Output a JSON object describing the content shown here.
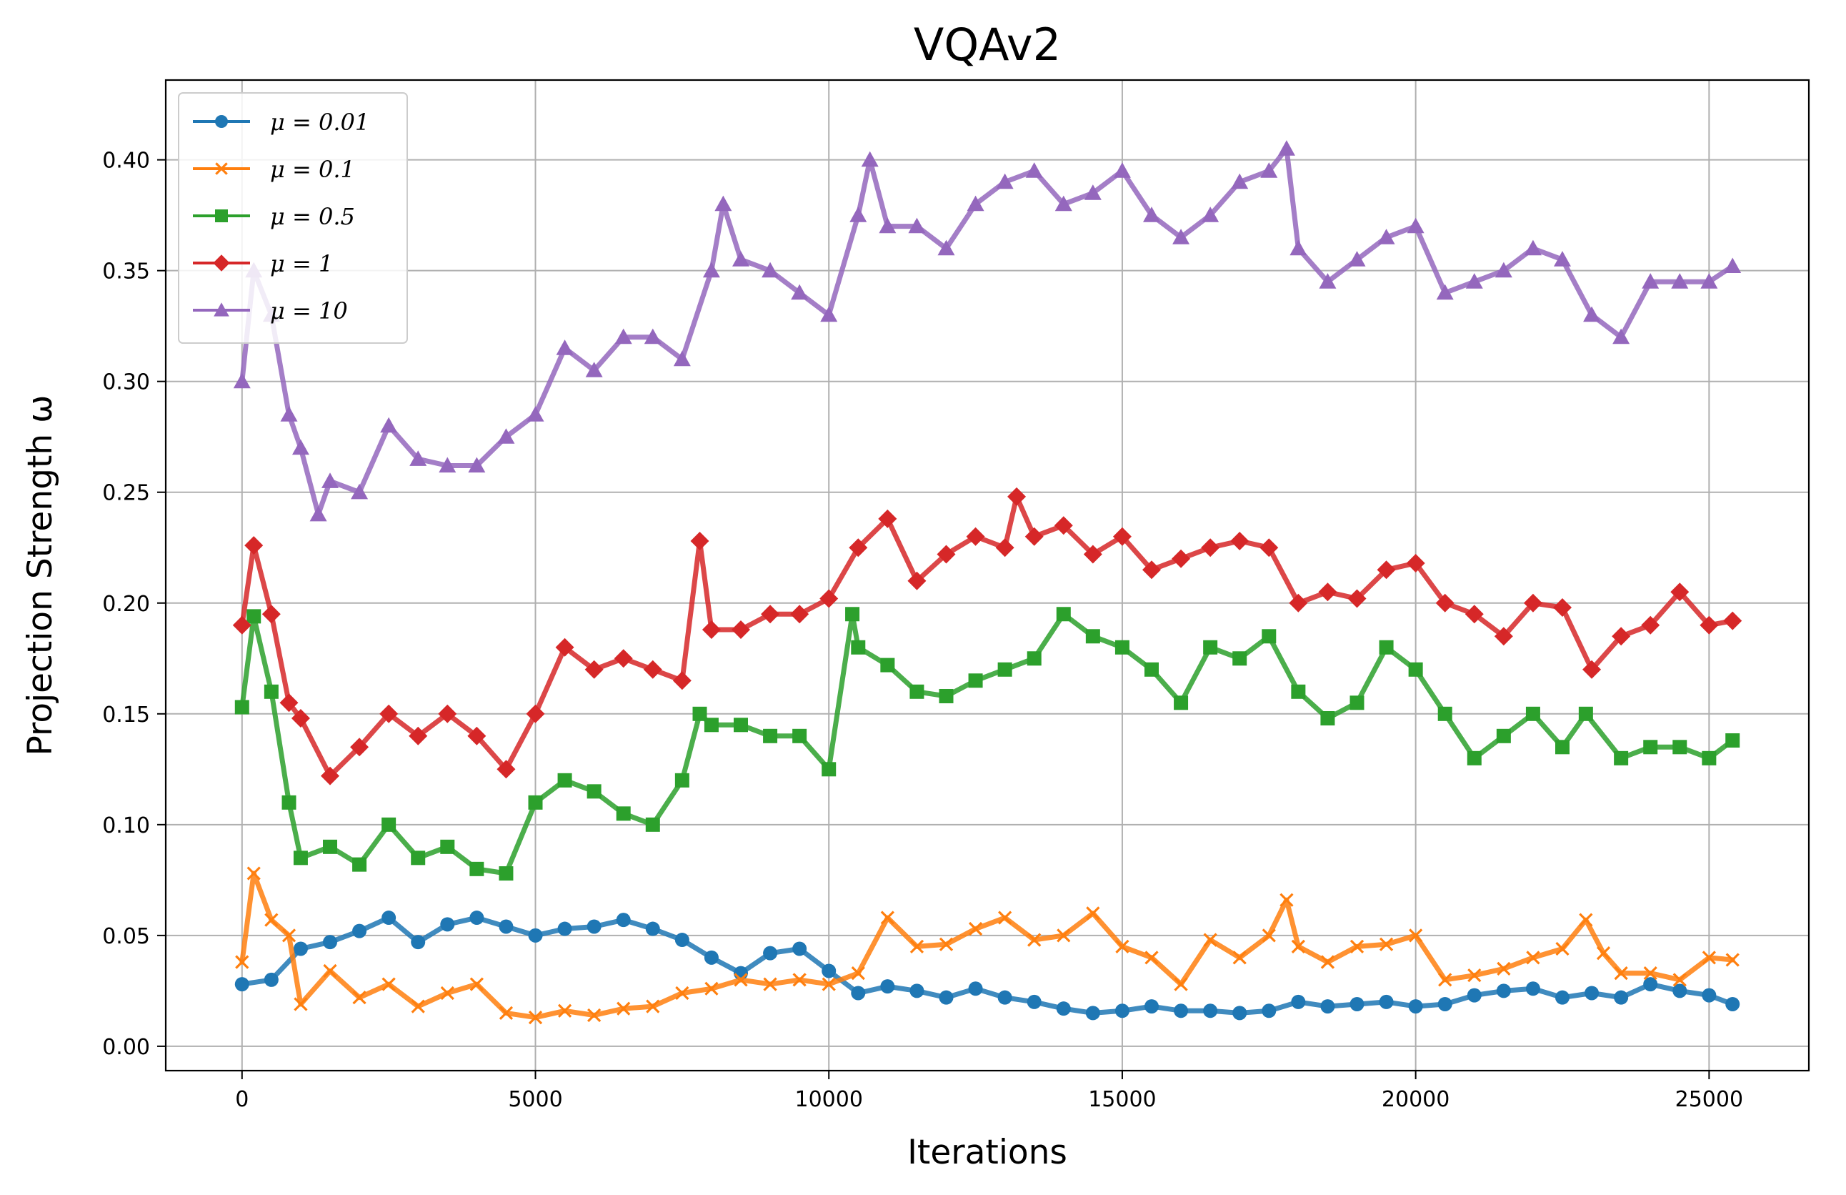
{
  "chart_data": {
    "type": "line",
    "title": "VQAv2",
    "xlabel": "Iterations",
    "ylabel": "Projection Strength ω",
    "xlim": [
      -1300,
      26700
    ],
    "ylim": [
      -0.011,
      0.436
    ],
    "x_ticks": [
      0,
      5000,
      10000,
      15000,
      20000,
      25000
    ],
    "x_tick_labels": [
      "0",
      "5000",
      "10000",
      "15000",
      "20000",
      "25000"
    ],
    "y_ticks": [
      0.0,
      0.05,
      0.1,
      0.15,
      0.2,
      0.25,
      0.3,
      0.35,
      0.4
    ],
    "y_tick_labels": [
      "0.00",
      "0.05",
      "0.10",
      "0.15",
      "0.20",
      "0.25",
      "0.30",
      "0.35",
      "0.40"
    ],
    "grid": true,
    "legend_position": "upper-left",
    "series": [
      {
        "name": "μ = 0.01",
        "color": "#1f77b4",
        "marker": "circle",
        "x": [
          0,
          500,
          1000,
          1500,
          2000,
          2500,
          3000,
          3500,
          4000,
          4500,
          5000,
          5500,
          6000,
          6500,
          7000,
          7500,
          8000,
          8500,
          9000,
          9500,
          10000,
          10500,
          11000,
          11500,
          12000,
          12500,
          13000,
          13500,
          14000,
          14500,
          15000,
          15500,
          16000,
          16500,
          17000,
          17500,
          18000,
          18500,
          19000,
          19500,
          20000,
          20500,
          21000,
          21500,
          22000,
          22500,
          23000,
          23500,
          24000,
          24500,
          25000,
          25400
        ],
        "y": [
          0.028,
          0.03,
          0.044,
          0.047,
          0.052,
          0.058,
          0.047,
          0.055,
          0.058,
          0.054,
          0.05,
          0.053,
          0.054,
          0.057,
          0.053,
          0.048,
          0.04,
          0.033,
          0.042,
          0.044,
          0.034,
          0.024,
          0.027,
          0.025,
          0.022,
          0.026,
          0.022,
          0.02,
          0.017,
          0.015,
          0.016,
          0.018,
          0.016,
          0.016,
          0.015,
          0.016,
          0.02,
          0.018,
          0.019,
          0.02,
          0.018,
          0.019,
          0.023,
          0.025,
          0.026,
          0.022,
          0.024,
          0.022,
          0.028,
          0.025,
          0.023,
          0.019
        ]
      },
      {
        "name": "μ = 0.1",
        "color": "#ff7f0e",
        "marker": "x",
        "x": [
          0,
          200,
          500,
          800,
          1000,
          1500,
          2000,
          2500,
          3000,
          3500,
          4000,
          4500,
          5000,
          5500,
          6000,
          6500,
          7000,
          7500,
          8000,
          8500,
          9000,
          9500,
          10000,
          10500,
          11000,
          11500,
          12000,
          12500,
          13000,
          13500,
          14000,
          14500,
          15000,
          15500,
          16000,
          16500,
          17000,
          17500,
          17800,
          18000,
          18500,
          19000,
          19500,
          20000,
          20500,
          21000,
          21500,
          22000,
          22500,
          22900,
          23200,
          23500,
          24000,
          24500,
          25000,
          25400
        ],
        "y": [
          0.038,
          0.078,
          0.057,
          0.05,
          0.019,
          0.034,
          0.022,
          0.028,
          0.018,
          0.024,
          0.028,
          0.015,
          0.013,
          0.016,
          0.014,
          0.017,
          0.018,
          0.024,
          0.026,
          0.03,
          0.028,
          0.03,
          0.028,
          0.033,
          0.058,
          0.045,
          0.046,
          0.053,
          0.058,
          0.048,
          0.05,
          0.06,
          0.045,
          0.04,
          0.028,
          0.048,
          0.04,
          0.05,
          0.066,
          0.045,
          0.038,
          0.045,
          0.046,
          0.05,
          0.03,
          0.032,
          0.035,
          0.04,
          0.044,
          0.057,
          0.042,
          0.033,
          0.033,
          0.03,
          0.04,
          0.039
        ]
      },
      {
        "name": "μ = 0.5",
        "color": "#2ca02c",
        "marker": "square",
        "x": [
          0,
          200,
          500,
          800,
          1000,
          1500,
          2000,
          2500,
          3000,
          3500,
          4000,
          4500,
          5000,
          5500,
          6000,
          6500,
          7000,
          7500,
          7800,
          8000,
          8500,
          9000,
          9500,
          10000,
          10400,
          10500,
          11000,
          11500,
          12000,
          12500,
          13000,
          13500,
          14000,
          14500,
          15000,
          15500,
          16000,
          16500,
          17000,
          17500,
          18000,
          18500,
          19000,
          19500,
          20000,
          20500,
          21000,
          21500,
          22000,
          22500,
          22900,
          23500,
          24000,
          24500,
          25000,
          25400
        ],
        "y": [
          0.153,
          0.194,
          0.16,
          0.11,
          0.085,
          0.09,
          0.082,
          0.1,
          0.085,
          0.09,
          0.08,
          0.078,
          0.11,
          0.12,
          0.115,
          0.105,
          0.1,
          0.12,
          0.15,
          0.145,
          0.145,
          0.14,
          0.14,
          0.125,
          0.195,
          0.18,
          0.172,
          0.16,
          0.158,
          0.165,
          0.17,
          0.175,
          0.195,
          0.185,
          0.18,
          0.17,
          0.155,
          0.18,
          0.175,
          0.185,
          0.16,
          0.148,
          0.155,
          0.18,
          0.17,
          0.15,
          0.13,
          0.14,
          0.15,
          0.135,
          0.15,
          0.13,
          0.135,
          0.135,
          0.13,
          0.138
        ]
      },
      {
        "name": "μ = 1",
        "color": "#d62728",
        "marker": "diamond",
        "x": [
          0,
          200,
          500,
          800,
          1000,
          1500,
          2000,
          2500,
          3000,
          3500,
          4000,
          4500,
          5000,
          5500,
          6000,
          6500,
          7000,
          7500,
          7800,
          8000,
          8500,
          9000,
          9500,
          10000,
          10500,
          11000,
          11500,
          12000,
          12500,
          13000,
          13200,
          13500,
          14000,
          14500,
          15000,
          15500,
          16000,
          16500,
          17000,
          17500,
          18000,
          18500,
          19000,
          19500,
          20000,
          20500,
          21000,
          21500,
          22000,
          22500,
          23000,
          23500,
          24000,
          24500,
          25000,
          25400
        ],
        "y": [
          0.19,
          0.226,
          0.195,
          0.155,
          0.148,
          0.122,
          0.135,
          0.15,
          0.14,
          0.15,
          0.14,
          0.125,
          0.15,
          0.18,
          0.17,
          0.175,
          0.17,
          0.165,
          0.228,
          0.188,
          0.188,
          0.195,
          0.195,
          0.202,
          0.225,
          0.238,
          0.21,
          0.222,
          0.23,
          0.225,
          0.248,
          0.23,
          0.235,
          0.222,
          0.23,
          0.215,
          0.22,
          0.225,
          0.228,
          0.225,
          0.2,
          0.205,
          0.202,
          0.215,
          0.218,
          0.2,
          0.195,
          0.185,
          0.2,
          0.198,
          0.17,
          0.185,
          0.19,
          0.205,
          0.19,
          0.192
        ]
      },
      {
        "name": "μ = 10",
        "color": "#9467bd",
        "marker": "triangle",
        "x": [
          0,
          200,
          500,
          800,
          1000,
          1300,
          1500,
          2000,
          2500,
          3000,
          3500,
          4000,
          4500,
          5000,
          5500,
          6000,
          6500,
          7000,
          7500,
          8000,
          8200,
          8500,
          9000,
          9500,
          10000,
          10500,
          10700,
          11000,
          11500,
          12000,
          12500,
          13000,
          13500,
          14000,
          14500,
          15000,
          15500,
          16000,
          16500,
          17000,
          17500,
          17800,
          18000,
          18500,
          19000,
          19500,
          20000,
          20500,
          21000,
          21500,
          22000,
          22500,
          23000,
          23500,
          24000,
          24500,
          25000,
          25400
        ],
        "y": [
          0.3,
          0.35,
          0.33,
          0.285,
          0.27,
          0.24,
          0.255,
          0.25,
          0.28,
          0.265,
          0.262,
          0.262,
          0.275,
          0.285,
          0.315,
          0.305,
          0.32,
          0.32,
          0.31,
          0.35,
          0.38,
          0.355,
          0.35,
          0.34,
          0.33,
          0.375,
          0.4,
          0.37,
          0.37,
          0.36,
          0.38,
          0.39,
          0.395,
          0.38,
          0.385,
          0.395,
          0.375,
          0.365,
          0.375,
          0.39,
          0.395,
          0.405,
          0.36,
          0.345,
          0.355,
          0.365,
          0.37,
          0.34,
          0.345,
          0.35,
          0.36,
          0.355,
          0.33,
          0.32,
          0.345,
          0.345,
          0.345,
          0.352
        ]
      }
    ]
  }
}
